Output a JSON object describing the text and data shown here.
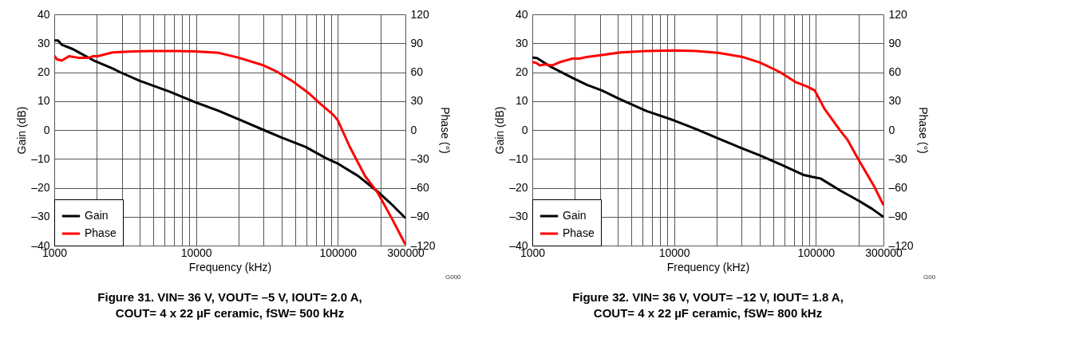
{
  "chart_data": [
    {
      "type": "line",
      "title": "Figure 31. VIN= 36 V, VOUT= –5 V, IOUT= 2.0 A,\nCOUT= 4 x 22 µF ceramic, fSW= 500 kHz",
      "xlabel": "Frequency (kHz)",
      "ylabel": "Gain (dB)",
      "y2label": "Phase (°)",
      "annotations": [
        "G000"
      ],
      "log": "x",
      "grid": true,
      "legend": "bottom left",
      "line_style": "solid",
      "marker": "none",
      "xlim": [
        1000,
        300000
      ],
      "xticks": [
        1000,
        {
          "value": 2000,
          "label": null
        },
        {
          "value": 3000,
          "label": null
        },
        {
          "value": 4000,
          "label": null
        },
        {
          "value": 5000,
          "label": null
        },
        {
          "value": 6000,
          "label": null
        },
        {
          "value": 7000,
          "label": null
        },
        {
          "value": 8000,
          "label": null
        },
        {
          "value": 9000,
          "label": null
        },
        10000,
        {
          "value": 20000,
          "label": null
        },
        {
          "value": 30000,
          "label": null
        },
        {
          "value": 40000,
          "label": null
        },
        {
          "value": 50000,
          "label": null
        },
        {
          "value": 60000,
          "label": null
        },
        {
          "value": 70000,
          "label": null
        },
        {
          "value": 80000,
          "label": null
        },
        {
          "value": 90000,
          "label": null
        },
        100000,
        {
          "value": 200000,
          "label": null
        },
        300000
      ],
      "ylim": [
        -40,
        40
      ],
      "yticks": [
        {
          "value": -40,
          "label": "–40"
        },
        {
          "value": -30,
          "label": "–30"
        },
        {
          "value": -20,
          "label": "–20"
        },
        {
          "value": -10,
          "label": "–10"
        },
        0,
        10,
        20,
        30,
        40
      ],
      "y2lim": [
        -120,
        120
      ],
      "y2ticks": [
        {
          "value": -120,
          "label": "–120"
        },
        {
          "value": -90,
          "label": "–90"
        },
        {
          "value": -60,
          "label": "–60"
        },
        {
          "value": -30,
          "label": "–30"
        },
        0,
        30,
        60,
        90,
        120
      ],
      "series": [
        {
          "name": "Gain",
          "color": "#000000",
          "x": [
            1000,
            1060,
            1130,
            1350,
            1470,
            1940,
            2580,
            2910,
            4010,
            6500,
            10000,
            14500,
            20000,
            30000,
            40000,
            59500,
            82000,
            100000,
            108000,
            139000,
            191000,
            243000,
            300000
          ],
          "values": [
            31,
            31,
            29.5,
            28,
            27,
            23.8,
            21.3,
            20,
            17,
            13.3,
            9.5,
            6.6,
            3.7,
            0,
            -2.6,
            -5.9,
            -9.7,
            -11.6,
            -12.6,
            -15.9,
            -21.3,
            -26,
            -30.5
          ]
        },
        {
          "name": "Phase",
          "color": "#ff0000",
          "axis": "y2",
          "x": [
            1000,
            1040,
            1130,
            1270,
            1470,
            1760,
            1870,
            2020,
            2580,
            3550,
            4910,
            7330,
            10000,
            14500,
            20000,
            30000,
            36700,
            48600,
            62000,
            75500,
            92500,
            100000,
            122000,
            156000,
            191000,
            243000,
            300000
          ],
          "values": [
            77,
            73.5,
            72,
            76.5,
            75,
            75,
            76.5,
            76.5,
            80.5,
            81.5,
            82,
            82,
            81.5,
            80,
            75,
            67,
            61,
            50,
            38.5,
            27,
            16,
            10,
            -18,
            -48,
            -65,
            -93,
            -119
          ]
        }
      ]
    },
    {
      "type": "line",
      "title": "Figure 32. VIN= 36 V, VOUT= –12 V, IOUT= 1.8 A,\nCOUT= 4 x 22 µF ceramic, fSW= 800 kHz",
      "xlabel": "Frequency (kHz)",
      "ylabel": "Gain (dB)",
      "y2label": "Phase (°)",
      "annotations": [
        "G00"
      ],
      "log": "x",
      "grid": true,
      "legend": "bottom left",
      "line_style": "solid",
      "marker": "none",
      "xlim": [
        1000,
        300000
      ],
      "xticks": [
        1000,
        {
          "value": 2000,
          "label": null
        },
        {
          "value": 3000,
          "label": null
        },
        {
          "value": 4000,
          "label": null
        },
        {
          "value": 5000,
          "label": null
        },
        {
          "value": 6000,
          "label": null
        },
        {
          "value": 7000,
          "label": null
        },
        {
          "value": 8000,
          "label": null
        },
        {
          "value": 9000,
          "label": null
        },
        10000,
        {
          "value": 20000,
          "label": null
        },
        {
          "value": 30000,
          "label": null
        },
        {
          "value": 40000,
          "label": null
        },
        {
          "value": 50000,
          "label": null
        },
        {
          "value": 60000,
          "label": null
        },
        {
          "value": 70000,
          "label": null
        },
        {
          "value": 80000,
          "label": null
        },
        {
          "value": 90000,
          "label": null
        },
        100000,
        {
          "value": 200000,
          "label": null
        },
        300000
      ],
      "ylim": [
        -40,
        40
      ],
      "yticks": [
        {
          "value": -40,
          "label": "–40"
        },
        {
          "value": -30,
          "label": "–30"
        },
        {
          "value": -20,
          "label": "–20"
        },
        {
          "value": -10,
          "label": "–10"
        },
        0,
        10,
        20,
        30,
        40
      ],
      "y2lim": [
        -120,
        120
      ],
      "y2ticks": [
        {
          "value": -120,
          "label": "–120"
        },
        {
          "value": -90,
          "label": "–90"
        },
        {
          "value": -60,
          "label": "–60"
        },
        {
          "value": -30,
          "label": "–30"
        },
        0,
        30,
        60,
        90,
        120
      ],
      "series": [
        {
          "name": "Gain",
          "color": "#000000",
          "x": [
            1000,
            1084,
            1175,
            1380,
            1557,
            1905,
            2425,
            3088,
            4091,
            6367,
            10000,
            14300,
            19700,
            30000,
            40300,
            58000,
            81300,
            95600,
            108000,
            148000,
            204000,
            248000,
            300000
          ],
          "values": [
            25.1,
            24.8,
            23.7,
            21.6,
            20.3,
            18.1,
            15.6,
            13.7,
            10.8,
            6.6,
            3.3,
            0.3,
            -2.6,
            -6.3,
            -8.8,
            -12.2,
            -15.5,
            -16.3,
            -16.8,
            -20.9,
            -24.7,
            -27.2,
            -30.1
          ]
        },
        {
          "name": "Phase",
          "color": "#ff0000",
          "axis": "y2",
          "x": [
            1000,
            1062,
            1128,
            1223,
            1380,
            1557,
            1905,
            2147,
            2425,
            3088,
            4200,
            6367,
            10000,
            14300,
            20500,
            30000,
            40300,
            56000,
            71300,
            87000,
            98300,
            115000,
            148000,
            167000,
            195000,
            259000,
            300000
          ],
          "values": [
            70.3,
            69.8,
            67,
            68,
            67,
            70.3,
            74,
            74,
            75.8,
            77.8,
            80.5,
            82,
            82.5,
            82,
            80,
            76,
            70,
            60,
            50,
            45,
            41,
            22,
            -0.3,
            -10,
            -28,
            -59,
            -78
          ]
        }
      ]
    }
  ]
}
